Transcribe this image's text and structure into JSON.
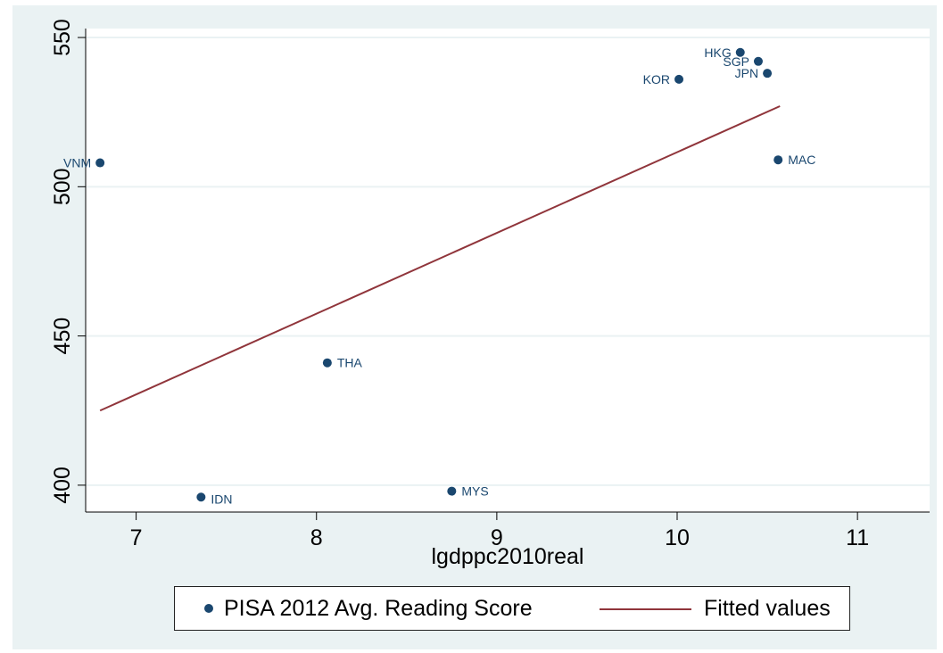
{
  "chart_data": {
    "type": "scatter",
    "xlabel": "lgdppc2010real",
    "ylabel": "",
    "xlim": [
      6.72,
      11.4
    ],
    "ylim": [
      391,
      553
    ],
    "xticks": [
      7,
      8,
      9,
      10,
      11
    ],
    "yticks": [
      400,
      450,
      500,
      550
    ],
    "grid": true,
    "legend_position": "bottom",
    "series": [
      {
        "name": "PISA 2012 Avg. Reading Score",
        "kind": "scatter",
        "points": [
          {
            "label": "VNM",
            "x": 6.8,
            "y": 508
          },
          {
            "label": "IDN",
            "x": 7.36,
            "y": 396
          },
          {
            "label": "THA",
            "x": 8.06,
            "y": 441
          },
          {
            "label": "MYS",
            "x": 8.75,
            "y": 398
          },
          {
            "label": "KOR",
            "x": 10.01,
            "y": 536
          },
          {
            "label": "HKG",
            "x": 10.35,
            "y": 545
          },
          {
            "label": "SGP",
            "x": 10.45,
            "y": 542
          },
          {
            "label": "JPN",
            "x": 10.5,
            "y": 538
          },
          {
            "label": "MAC",
            "x": 10.56,
            "y": 509
          }
        ]
      },
      {
        "name": "Fitted values",
        "kind": "line",
        "points": [
          {
            "x": 6.8,
            "y": 425
          },
          {
            "x": 10.57,
            "y": 527
          }
        ]
      }
    ]
  },
  "colors": {
    "background": "#eaf2f3",
    "plot_area": "#ffffff",
    "markers": "#1a476f",
    "fit_line": "#90353b",
    "label_text": "#1a476f"
  }
}
